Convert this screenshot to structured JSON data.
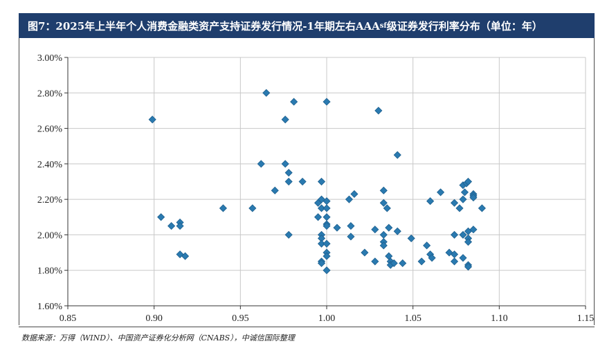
{
  "title": "图7：2025年上半年个人消费金融类资产支持证券发行情况-1年期左右AAAsf级证券发行利率分布（单位：年）",
  "title_parts": {
    "main": "图7：2025年上半年个人消费金融类资产支持证券发行情况-1年期左右AAA",
    "sub": "sf",
    "tail": "级证券发行利率分布（单位：年）"
  },
  "source": "数据来源：万得（WIND）、中国资产证券化分析网（CNABS），中诚信国际整理",
  "colors": {
    "header_bg": "#1f3e6d",
    "marker": "#2a7ab0",
    "marker_stroke": "#1d5f8e",
    "grid": "#c8c8c8"
  },
  "chart_data": {
    "type": "scatter",
    "title": "",
    "xlabel": "",
    "ylabel": "",
    "xlim": [
      0.85,
      1.15
    ],
    "ylim": [
      1.6,
      3.0
    ],
    "x_ticks": [
      "0.85",
      "0.90",
      "0.95",
      "1.00",
      "1.05",
      "1.10",
      "1.15"
    ],
    "x_tick_values": [
      0.85,
      0.9,
      0.95,
      1.0,
      1.05,
      1.1,
      1.15
    ],
    "y_ticks": [
      "1.60%",
      "1.80%",
      "2.00%",
      "2.20%",
      "2.40%",
      "2.60%",
      "2.80%",
      "3.00%"
    ],
    "y_tick_values": [
      1.6,
      1.8,
      2.0,
      2.2,
      2.4,
      2.6,
      2.8,
      3.0
    ],
    "grid": true,
    "marker": "diamond",
    "series": [
      {
        "points": [
          [
            0.899,
            2.65
          ],
          [
            0.904,
            2.1
          ],
          [
            0.91,
            2.05
          ],
          [
            0.915,
            2.07
          ],
          [
            0.915,
            2.05
          ],
          [
            0.915,
            1.89
          ],
          [
            0.918,
            1.88
          ],
          [
            0.94,
            2.15
          ],
          [
            0.957,
            2.15
          ],
          [
            0.962,
            2.4
          ],
          [
            0.965,
            2.8
          ],
          [
            0.97,
            2.25
          ],
          [
            0.976,
            2.65
          ],
          [
            0.976,
            2.4
          ],
          [
            0.978,
            2.35
          ],
          [
            0.978,
            2.3
          ],
          [
            0.978,
            2.0
          ],
          [
            0.981,
            2.75
          ],
          [
            0.986,
            2.3
          ],
          [
            0.995,
            2.18
          ],
          [
            0.995,
            2.1
          ],
          [
            0.997,
            2.3
          ],
          [
            0.997,
            2.2
          ],
          [
            0.997,
            2.15
          ],
          [
            0.997,
            2.0
          ],
          [
            0.997,
            1.98
          ],
          [
            0.997,
            1.95
          ],
          [
            0.997,
            1.85
          ],
          [
            0.997,
            1.84
          ],
          [
            1.0,
            2.75
          ],
          [
            1.0,
            2.19
          ],
          [
            1.0,
            2.15
          ],
          [
            1.0,
            2.1
          ],
          [
            1.0,
            2.06
          ],
          [
            1.0,
            2.05
          ],
          [
            1.0,
            1.95
          ],
          [
            1.0,
            1.9
          ],
          [
            1.0,
            1.88
          ],
          [
            1.0,
            1.8
          ],
          [
            1.006,
            2.04
          ],
          [
            1.013,
            2.2
          ],
          [
            1.014,
            2.05
          ],
          [
            1.014,
            1.99
          ],
          [
            1.016,
            2.23
          ],
          [
            1.022,
            1.9
          ],
          [
            1.028,
            2.03
          ],
          [
            1.028,
            1.85
          ],
          [
            1.03,
            2.7
          ],
          [
            1.033,
            2.25
          ],
          [
            1.033,
            2.18
          ],
          [
            1.033,
            2.0
          ],
          [
            1.033,
            1.96
          ],
          [
            1.033,
            1.94
          ],
          [
            1.035,
            2.15
          ],
          [
            1.036,
            2.04
          ],
          [
            1.036,
            1.88
          ],
          [
            1.037,
            1.85
          ],
          [
            1.037,
            1.83
          ],
          [
            1.039,
            1.84
          ],
          [
            1.041,
            2.45
          ],
          [
            1.041,
            2.02
          ],
          [
            1.044,
            1.84
          ],
          [
            1.049,
            1.98
          ],
          [
            1.055,
            1.85
          ],
          [
            1.058,
            1.94
          ],
          [
            1.06,
            2.19
          ],
          [
            1.06,
            1.89
          ],
          [
            1.061,
            1.87
          ],
          [
            1.066,
            2.24
          ],
          [
            1.071,
            1.9
          ],
          [
            1.074,
            2.18
          ],
          [
            1.074,
            2.0
          ],
          [
            1.074,
            1.89
          ],
          [
            1.074,
            1.85
          ],
          [
            1.077,
            2.15
          ],
          [
            1.079,
            2.28
          ],
          [
            1.079,
            2.2
          ],
          [
            1.079,
            2.0
          ],
          [
            1.079,
            1.87
          ],
          [
            1.08,
            2.24
          ],
          [
            1.081,
            2.29
          ],
          [
            1.082,
            2.3
          ],
          [
            1.082,
            2.02
          ],
          [
            1.082,
            1.98
          ],
          [
            1.082,
            1.96
          ],
          [
            1.082,
            1.83
          ],
          [
            1.082,
            1.82
          ],
          [
            1.085,
            2.23
          ],
          [
            1.085,
            2.22
          ],
          [
            1.085,
            2.21
          ],
          [
            1.085,
            2.03
          ],
          [
            1.09,
            2.15
          ]
        ]
      }
    ]
  }
}
